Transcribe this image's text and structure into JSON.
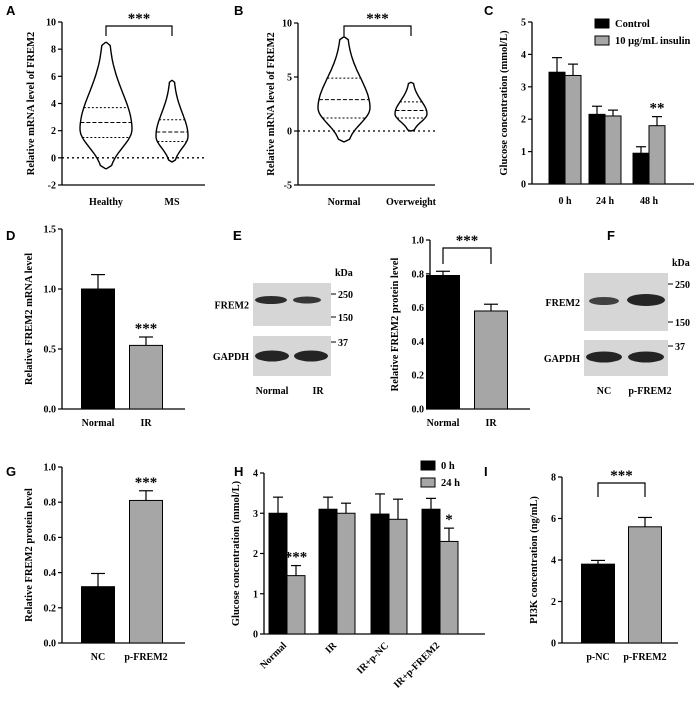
{
  "colors": {
    "black_bar": "#000000",
    "gray_bar": "#a6a6a6",
    "blot_bg": "#d6d6d6",
    "band": "#1a1a1a"
  },
  "chart_data": [
    {
      "panel": "A",
      "type": "violin",
      "ylabel": "Relative mRNA level of FREM2",
      "ylim": [
        -2,
        10
      ],
      "yticks": [
        -2,
        0,
        2,
        4,
        6,
        8,
        10
      ],
      "categories": [
        "Healthy",
        "MS"
      ],
      "violins": [
        {
          "name": "Healthy",
          "min": -0.8,
          "max": 8.5,
          "q1": 1.5,
          "median": 2.6,
          "q3": 3.7
        },
        {
          "name": "MS",
          "min": -0.3,
          "max": 5.7,
          "q1": 1.2,
          "median": 1.9,
          "q3": 2.8
        }
      ],
      "significance": "***",
      "reference_line": 0
    },
    {
      "panel": "B",
      "type": "violin",
      "ylabel": "Relative mRNA level of FREM2",
      "ylim": [
        -5,
        10
      ],
      "yticks": [
        -5,
        0,
        5,
        10
      ],
      "categories": [
        "Normal",
        "Overweight"
      ],
      "violins": [
        {
          "name": "Normal",
          "min": -1.0,
          "max": 8.7,
          "q1": 1.2,
          "median": 2.9,
          "q3": 4.9
        },
        {
          "name": "Overweight",
          "min": 0.0,
          "max": 4.5,
          "q1": 1.2,
          "median": 1.9,
          "q3": 2.7
        }
      ],
      "significance": "***",
      "reference_line": 0
    },
    {
      "panel": "C",
      "type": "bar",
      "ylabel": "Glucose concentration (mmol/L)",
      "ylim": [
        0,
        5
      ],
      "yticks": [
        0,
        1,
        2,
        3,
        4,
        5
      ],
      "categories": [
        "0 h",
        "24 h",
        "48 h"
      ],
      "series": [
        {
          "name": "Control",
          "values": [
            3.45,
            2.15,
            0.95
          ],
          "errors": [
            0.45,
            0.25,
            0.2
          ]
        },
        {
          "name": "10 μg/mL insulin",
          "values": [
            3.35,
            2.1,
            1.8
          ],
          "errors": [
            0.35,
            0.18,
            0.28
          ]
        }
      ],
      "significance_labels": [
        "",
        "",
        "**"
      ]
    },
    {
      "panel": "D",
      "type": "bar",
      "ylabel": "Relative FREM2 mRNA level",
      "ylim": [
        0,
        1.5
      ],
      "yticks": [
        "0.0",
        "0.5",
        "1.0",
        "1.5"
      ],
      "categories": [
        "Normal",
        "IR"
      ],
      "values": [
        1.0,
        0.53
      ],
      "errors": [
        0.12,
        0.07
      ],
      "significance_labels": [
        "",
        "***"
      ]
    },
    {
      "panel": "E",
      "type": "bar",
      "ylabel": "Relative FREM2 protein level",
      "ylim": [
        0,
        1.0
      ],
      "yticks": [
        "0.0",
        "0.2",
        "0.4",
        "0.6",
        "0.8",
        "1.0"
      ],
      "categories": [
        "Normal",
        "IR"
      ],
      "values": [
        0.79,
        0.58
      ],
      "errors": [
        0.025,
        0.04
      ],
      "significance": "***"
    },
    {
      "panel": "G",
      "type": "bar",
      "ylabel": "Relative FREM2 protein level",
      "ylim": [
        0,
        1.0
      ],
      "yticks": [
        "0.0",
        "0.2",
        "0.4",
        "0.6",
        "0.8",
        "1.0"
      ],
      "categories": [
        "NC",
        "p-FREM2"
      ],
      "values": [
        0.32,
        0.81
      ],
      "errors": [
        0.075,
        0.055
      ],
      "significance_labels": [
        "",
        "***"
      ]
    },
    {
      "panel": "H",
      "type": "bar",
      "ylabel": "Glucose concentration (mmol/L)",
      "ylim": [
        0,
        4
      ],
      "yticks": [
        0,
        1,
        2,
        3,
        4
      ],
      "categories": [
        "Normal",
        "IR",
        "IR+p-NC",
        "IR+p-FREM2"
      ],
      "series": [
        {
          "name": "0 h",
          "values": [
            3.0,
            3.1,
            2.98,
            3.1
          ],
          "errors": [
            0.4,
            0.3,
            0.5,
            0.27
          ]
        },
        {
          "name": "24 h",
          "values": [
            1.45,
            3.0,
            2.85,
            2.3
          ],
          "errors": [
            0.25,
            0.25,
            0.5,
            0.33
          ]
        }
      ],
      "significance_labels": [
        "***",
        "",
        "",
        "*"
      ]
    },
    {
      "panel": "I",
      "type": "bar",
      "ylabel": "PI3K concentration (ng/mL)",
      "ylim": [
        0,
        8
      ],
      "yticks": [
        0,
        2,
        4,
        6,
        8
      ],
      "categories": [
        "p-NC",
        "p-FREM2"
      ],
      "values": [
        3.8,
        5.6
      ],
      "errors": [
        0.18,
        0.45
      ],
      "significance": "***"
    }
  ],
  "blots": [
    {
      "panel": "E",
      "unit": "kDa",
      "row_labels": [
        "FREM2",
        "GAPDH"
      ],
      "markers": [
        "250",
        "150",
        "37"
      ],
      "lane_labels": [
        "Normal",
        "IR"
      ]
    },
    {
      "panel": "F",
      "unit": "kDa",
      "row_labels": [
        "FREM2",
        "GAPDH"
      ],
      "markers": [
        "250",
        "150",
        "37"
      ],
      "lane_labels": [
        "NC",
        "p-FREM2"
      ]
    }
  ]
}
